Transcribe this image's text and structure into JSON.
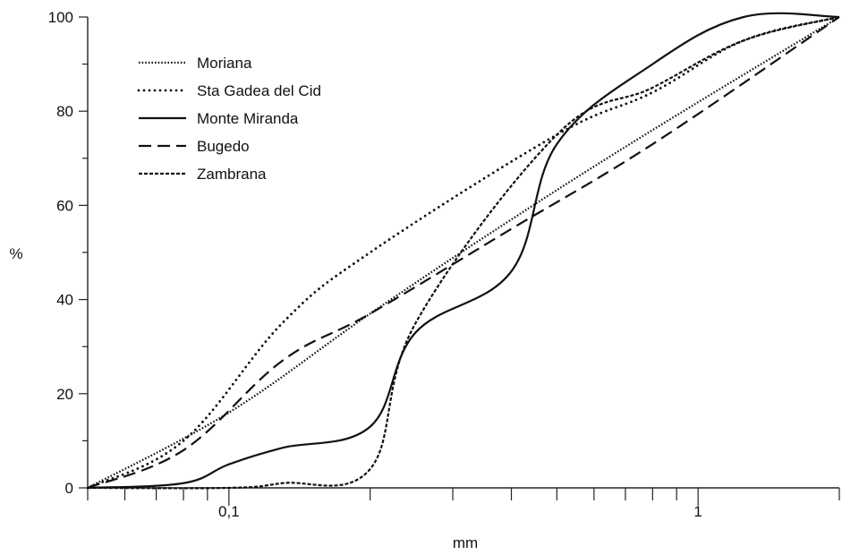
{
  "chart_data": {
    "type": "line",
    "xscale": "log",
    "xlim": [
      0.05,
      2
    ],
    "ylim": [
      0,
      100
    ],
    "xlabel": "mm",
    "ylabel": "%",
    "title": "",
    "grid": false,
    "legend_position": "top-left",
    "x_tick_labels": [
      {
        "value": 0.1,
        "label": "0,1"
      },
      {
        "value": 1,
        "label": "1"
      }
    ],
    "y_tick_labels": [
      {
        "value": 0,
        "label": "0"
      },
      {
        "value": 20,
        "label": "20"
      },
      {
        "value": 40,
        "label": "40"
      },
      {
        "value": 60,
        "label": "60"
      },
      {
        "value": 80,
        "label": "80"
      },
      {
        "value": 100,
        "label": "100"
      }
    ],
    "series": [
      {
        "name": "Moriana",
        "style": "dotted-fine",
        "points": [
          [
            0.05,
            0
          ],
          [
            0.1,
            16
          ],
          [
            0.2,
            37
          ],
          [
            0.4,
            57
          ],
          [
            0.8,
            76
          ],
          [
            2.0,
            100
          ]
        ]
      },
      {
        "name": "Sta Gadea del Cid",
        "style": "dotted-sparse",
        "points": [
          [
            0.05,
            0
          ],
          [
            0.08,
            10
          ],
          [
            0.13,
            35
          ],
          [
            0.2,
            50
          ],
          [
            0.5,
            75
          ],
          [
            0.8,
            84
          ],
          [
            1.25,
            95
          ],
          [
            2.0,
            100
          ]
        ]
      },
      {
        "name": "Monte Miranda",
        "style": "solid",
        "points": [
          [
            0.05,
            0
          ],
          [
            0.08,
            1
          ],
          [
            0.1,
            5
          ],
          [
            0.13,
            8.5
          ],
          [
            0.2,
            13
          ],
          [
            0.25,
            33
          ],
          [
            0.4,
            46
          ],
          [
            0.5,
            73
          ],
          [
            0.8,
            90
          ],
          [
            1.25,
            100
          ],
          [
            2.0,
            100
          ]
        ]
      },
      {
        "name": "Bugedo",
        "style": "dashed",
        "points": [
          [
            0.05,
            0
          ],
          [
            0.08,
            8
          ],
          [
            0.13,
            27
          ],
          [
            0.2,
            37
          ],
          [
            0.4,
            55
          ],
          [
            0.8,
            73
          ],
          [
            2.0,
            100
          ]
        ]
      },
      {
        "name": "Zambrana",
        "style": "dashed-short",
        "points": [
          [
            0.05,
            0
          ],
          [
            0.1,
            0
          ],
          [
            0.13,
            1
          ],
          [
            0.2,
            4
          ],
          [
            0.25,
            35
          ],
          [
            0.5,
            75
          ],
          [
            0.8,
            85
          ],
          [
            1.25,
            95
          ],
          [
            2.0,
            100
          ]
        ]
      }
    ]
  }
}
